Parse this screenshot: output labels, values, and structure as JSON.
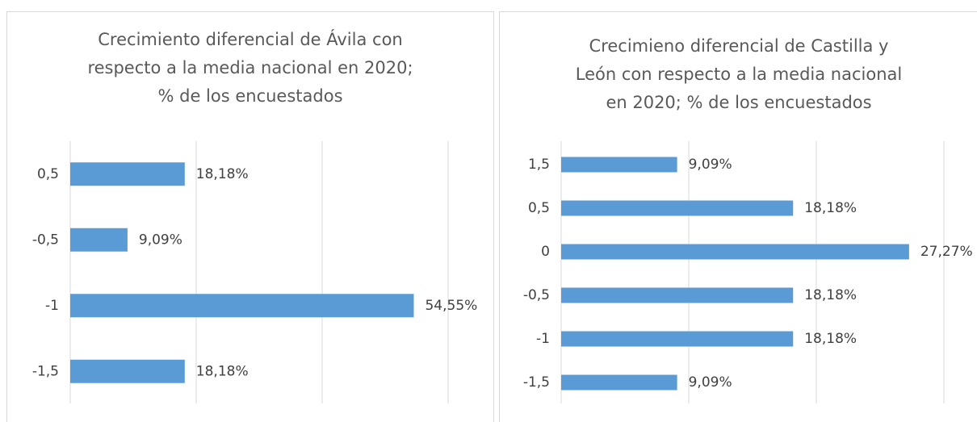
{
  "chart_data": [
    {
      "type": "bar",
      "orientation": "horizontal",
      "title": [
        "Crecimiento diferencial de Ávila con",
        "respecto a la media nacional en 2020;",
        "% de los encuestados"
      ],
      "categories": [
        "0,5",
        "-0,5",
        "-1",
        "-1,5"
      ],
      "values": [
        18.18,
        9.09,
        54.55,
        18.18
      ],
      "value_labels": [
        "18,18%",
        "9,09%",
        "54,55%",
        "18,18%"
      ],
      "color": "#5b9bd5",
      "xlim": [
        0,
        60
      ],
      "xticks": [
        0,
        20,
        40,
        60
      ],
      "grid": true
    },
    {
      "type": "bar",
      "orientation": "horizontal",
      "title": [
        "Crecimieno diferencial de Castilla y",
        "León con respecto a la media nacional",
        "en 2020; % de los encuestados"
      ],
      "categories": [
        "1,5",
        "0,5",
        "0",
        "-0,5",
        "-1",
        "-1,5"
      ],
      "values": [
        9.09,
        18.18,
        27.27,
        18.18,
        18.18,
        9.09
      ],
      "value_labels": [
        "9,09%",
        "18,18%",
        "27,27%",
        "18,18%",
        "18,18%",
        "9,09%"
      ],
      "color": "#5b9bd5",
      "xlim": [
        0,
        30
      ],
      "xticks": [
        0,
        10,
        20,
        30
      ],
      "grid": true
    }
  ]
}
